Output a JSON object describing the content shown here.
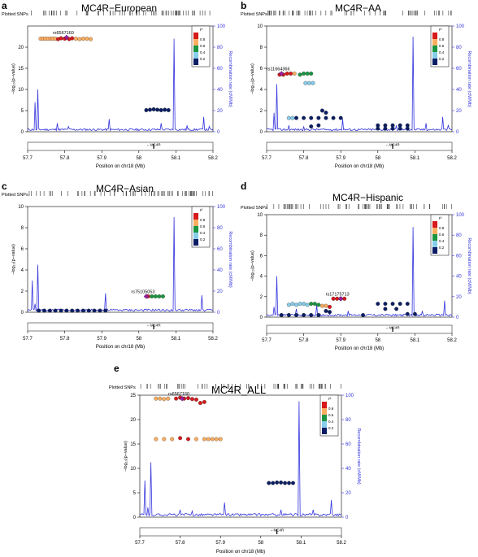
{
  "chart_data": [
    {
      "type": "scatter",
      "panel_label": "a",
      "title": "MC4R−European",
      "xlabel": "Position on chr18 (Mb)",
      "ylabel": "−log₁₀(p−value)",
      "y2label": "Recombination rate (cM/Mb)",
      "plotted_snps_label": "Plotted SNPs",
      "gene_label": "←MC4R",
      "lead_snp": "rs6567160",
      "xlim": [
        57.7,
        58.2
      ],
      "ylim": [
        0,
        25
      ],
      "y2lim": [
        0,
        100
      ],
      "x_ticks": [
        "57.7",
        "57.8",
        "57.9",
        "58",
        "58.1",
        "58.2"
      ],
      "y_ticks": [
        0,
        5,
        10,
        15,
        20
      ],
      "y2_ticks": [
        0,
        20,
        40,
        60,
        80,
        100
      ],
      "legend": {
        "title": "r²",
        "labels": [
          "0.8",
          "0.6",
          "0.4",
          "0.2"
        ]
      },
      "lead_point": [
        57.805,
        22.3
      ],
      "points": [
        [
          57.735,
          22
        ],
        [
          57.742,
          22
        ],
        [
          57.748,
          22
        ],
        [
          57.755,
          22
        ],
        [
          57.762,
          22
        ],
        [
          57.768,
          22
        ],
        [
          57.775,
          22
        ],
        [
          57.782,
          21.9
        ],
        [
          57.79,
          22.1
        ],
        [
          57.8,
          22
        ],
        [
          57.812,
          21.9
        ],
        [
          57.82,
          22.1
        ],
        [
          57.83,
          22
        ],
        [
          57.84,
          21.9
        ],
        [
          57.85,
          22
        ],
        [
          57.86,
          22
        ],
        [
          57.87,
          21.9
        ],
        [
          58.02,
          5.1
        ],
        [
          58.03,
          5.2
        ],
        [
          58.04,
          5.3
        ],
        [
          58.05,
          5.2
        ],
        [
          58.06,
          5.1
        ],
        [
          58.07,
          5.2
        ],
        [
          58.08,
          5.1
        ]
      ],
      "point_r2": [
        0.7,
        0.7,
        0.7,
        0.7,
        0.7,
        0.7,
        0.7,
        0.9,
        0.9,
        0.9,
        0.9,
        0.9,
        0.7,
        0.7,
        0.7,
        0.7,
        0.7,
        0.1,
        0.1,
        0.1,
        0.1,
        0.1,
        0.1,
        0.1
      ],
      "recomb_peaks": [
        [
          57.72,
          28
        ],
        [
          57.728,
          40
        ],
        [
          57.78,
          8
        ],
        [
          57.81,
          5
        ],
        [
          57.92,
          12
        ],
        [
          58.06,
          8
        ],
        [
          58.094,
          88
        ],
        [
          58.13,
          6
        ],
        [
          58.175,
          14
        ],
        [
          58.19,
          5
        ]
      ]
    },
    {
      "type": "scatter",
      "panel_label": "b",
      "title": "MC4R−AA",
      "xlabel": "Position on chr18 (Mb)",
      "ylabel": "−log₁₀(p−value)",
      "y2label": "Recombination rate (cM/Mb)",
      "plotted_snps_label": "Plotted SNPs",
      "gene_label": "←MC4R",
      "lead_snp": "rs11664366",
      "xlim": [
        57.7,
        58.2
      ],
      "ylim": [
        0,
        10
      ],
      "y2lim": [
        0,
        100
      ],
      "x_ticks": [
        "57.7",
        "57.8",
        "57.9",
        "58",
        "58.1",
        "58.2"
      ],
      "y_ticks": [
        0,
        2,
        4,
        6,
        8,
        10
      ],
      "y2_ticks": [
        0,
        20,
        40,
        60,
        80,
        100
      ],
      "legend": {
        "title": "r²",
        "labels": [
          "0.8",
          "0.6",
          "0.4",
          "0.2"
        ]
      },
      "lead_point": [
        57.74,
        5.5
      ],
      "points": [
        [
          57.735,
          5.4
        ],
        [
          57.745,
          5.4
        ],
        [
          57.755,
          5.5
        ],
        [
          57.765,
          5.5
        ],
        [
          57.775,
          5.5
        ],
        [
          57.79,
          5.4
        ],
        [
          57.8,
          5.5
        ],
        [
          57.81,
          5.5
        ],
        [
          57.82,
          5.5
        ],
        [
          57.805,
          4.6
        ],
        [
          57.815,
          4.6
        ],
        [
          57.825,
          4.6
        ],
        [
          57.76,
          1.3
        ],
        [
          57.77,
          1.3
        ],
        [
          57.78,
          1.3
        ],
        [
          57.8,
          1.3
        ],
        [
          57.82,
          1.3
        ],
        [
          57.84,
          1.3
        ],
        [
          57.86,
          1.3
        ],
        [
          57.88,
          1.3
        ],
        [
          57.9,
          1.3
        ],
        [
          57.85,
          2
        ],
        [
          57.86,
          1.8
        ],
        [
          57.82,
          0.5
        ],
        [
          57.84,
          0.6
        ],
        [
          58.0,
          0.6
        ],
        [
          58.02,
          0.6
        ],
        [
          58.04,
          0.6
        ],
        [
          58.06,
          0.6
        ],
        [
          58.08,
          0.6
        ],
        [
          58.0,
          0.3
        ],
        [
          58.02,
          0.3
        ],
        [
          58.04,
          0.3
        ],
        [
          58.06,
          0.3
        ],
        [
          58.08,
          0.3
        ]
      ],
      "point_r2": [
        0.9,
        0.9,
        0.9,
        0.9,
        0.7,
        0.5,
        0.5,
        0.5,
        0.5,
        0.3,
        0.3,
        0.3,
        0.3,
        0.3,
        0.1,
        0.1,
        0.1,
        0.1,
        0.1,
        0.1,
        0.1,
        0.1,
        0.1,
        0.1,
        0.1,
        0.1,
        0.1,
        0.1,
        0.1,
        0.1,
        0.1,
        0.1,
        0.1,
        0.1,
        0.1
      ],
      "recomb_peaks": [
        [
          57.72,
          18
        ],
        [
          57.728,
          45
        ],
        [
          57.76,
          6
        ],
        [
          57.8,
          5
        ],
        [
          57.905,
          12
        ],
        [
          58.05,
          6
        ],
        [
          58.094,
          90
        ],
        [
          58.13,
          8
        ],
        [
          58.175,
          14
        ],
        [
          58.19,
          6
        ]
      ]
    },
    {
      "type": "scatter",
      "panel_label": "c",
      "title": "MC4R−Asian",
      "xlabel": "Position on chr18 (Mb)",
      "ylabel": "−log₁₀(p−value)",
      "y2label": "Recombination rate (cM/Mb)",
      "plotted_snps_label": "Plotted SNPs",
      "gene_label": "←MC4R",
      "lead_snp": "rs75105053",
      "xlim": [
        57.7,
        58.2
      ],
      "ylim": [
        0,
        10
      ],
      "y2lim": [
        0,
        100
      ],
      "x_ticks": [
        "57.7",
        "57.8",
        "57.9",
        "58",
        "58.1",
        "58.2"
      ],
      "y_ticks": [
        0,
        2,
        4,
        6,
        8,
        10
      ],
      "y2_ticks": [
        0,
        20,
        40,
        60,
        80,
        100
      ],
      "legend": {
        "title": "r²",
        "labels": [
          "0.8",
          "0.6",
          "0.4",
          "0.2"
        ]
      },
      "lead_point": [
        58.02,
        1.5
      ],
      "points": [
        [
          57.73,
          0.15
        ],
        [
          57.745,
          0.15
        ],
        [
          57.76,
          0.15
        ],
        [
          57.775,
          0.15
        ],
        [
          57.79,
          0.15
        ],
        [
          57.805,
          0.15
        ],
        [
          57.82,
          0.15
        ],
        [
          57.835,
          0.15
        ],
        [
          57.85,
          0.15
        ],
        [
          57.865,
          0.15
        ],
        [
          57.88,
          0.15
        ],
        [
          57.895,
          0.15
        ],
        [
          57.91,
          0.15
        ],
        [
          58.025,
          1.5
        ],
        [
          58.035,
          1.5
        ],
        [
          58.045,
          1.5
        ],
        [
          58.055,
          1.5
        ],
        [
          58.065,
          1.5
        ]
      ],
      "point_r2": [
        0.1,
        0.1,
        0.1,
        0.1,
        0.1,
        0.1,
        0.1,
        0.1,
        0.1,
        0.1,
        0.1,
        0.1,
        0.1,
        0.9,
        0.5,
        0.5,
        0.5,
        0.5
      ],
      "recomb_peaks": [
        [
          57.712,
          30
        ],
        [
          57.72,
          8
        ],
        [
          57.728,
          45
        ],
        [
          57.91,
          18
        ],
        [
          58.094,
          90
        ],
        [
          58.17,
          16
        ]
      ]
    },
    {
      "type": "scatter",
      "panel_label": "d",
      "title": "MC4R−Hispanic",
      "xlabel": "Position on chr18 (Mb)",
      "ylabel": "−log₁₀(p−value)",
      "y2label": "Recombination rate (cM/Mb)",
      "plotted_snps_label": "Plotted SNPs",
      "gene_label": "←MC4R",
      "lead_snp": "rs17175713",
      "xlim": [
        57.7,
        58.2
      ],
      "ylim": [
        0,
        10
      ],
      "y2lim": [
        0,
        100
      ],
      "x_ticks": [
        "57.7",
        "57.8",
        "57.9",
        "58",
        "58.1",
        "58.2"
      ],
      "y_ticks": [
        0,
        2,
        4,
        6,
        8,
        10
      ],
      "y2_ticks": [
        0,
        20,
        40,
        60,
        80,
        100
      ],
      "legend": {
        "title": "r²",
        "labels": [
          "0.8",
          "0.6",
          "0.4",
          "0.2"
        ]
      },
      "lead_point": [
        57.9,
        1.8
      ],
      "points": [
        [
          57.76,
          1.2
        ],
        [
          57.77,
          1.3
        ],
        [
          57.78,
          1.2
        ],
        [
          57.79,
          1.3
        ],
        [
          57.8,
          1.3
        ],
        [
          57.81,
          1.2
        ],
        [
          57.82,
          1.3
        ],
        [
          57.83,
          1.3
        ],
        [
          57.84,
          1.2
        ],
        [
          57.85,
          1.1
        ],
        [
          57.86,
          1.1
        ],
        [
          57.87,
          1.0
        ],
        [
          57.88,
          1.8
        ],
        [
          57.89,
          1.8
        ],
        [
          57.9,
          1.8
        ],
        [
          57.91,
          1.8
        ],
        [
          57.74,
          0.2
        ],
        [
          57.76,
          0.2
        ],
        [
          57.78,
          0.2
        ],
        [
          57.8,
          0.2
        ],
        [
          57.82,
          0.2
        ],
        [
          57.84,
          0.2
        ],
        [
          57.86,
          0.6
        ],
        [
          57.87,
          0.5
        ],
        [
          57.96,
          0.2
        ],
        [
          58.0,
          1.3
        ],
        [
          58.02,
          1.3
        ],
        [
          58.04,
          1.3
        ],
        [
          58.06,
          1.3
        ],
        [
          58.08,
          1.3
        ],
        [
          58.02,
          0.8
        ],
        [
          58.05,
          0.8
        ],
        [
          58.08,
          0.3
        ],
        [
          58.1,
          0.3
        ]
      ],
      "point_r2": [
        0.3,
        0.3,
        0.3,
        0.3,
        0.3,
        0.3,
        0.5,
        0.5,
        0.5,
        0.7,
        0.7,
        0.9,
        0.9,
        0.9,
        0.9,
        0.9,
        0.1,
        0.1,
        0.1,
        0.1,
        0.1,
        0.1,
        0.1,
        0.1,
        0.1,
        0.1,
        0.1,
        0.1,
        0.1,
        0.1,
        0.1,
        0.1,
        0.1,
        0.1
      ],
      "recomb_peaks": [
        [
          57.72,
          10
        ],
        [
          57.728,
          40
        ],
        [
          57.78,
          8
        ],
        [
          57.835,
          12
        ],
        [
          57.92,
          6
        ],
        [
          58.094,
          88
        ],
        [
          58.12,
          6
        ],
        [
          58.18,
          16
        ]
      ]
    },
    {
      "type": "scatter",
      "panel_label": "e",
      "title": "MC4R_ALL",
      "xlabel": "Position on chr18 (Mb)",
      "ylabel": "−log₁₀(p−value)",
      "y2label": "Recombination rate (cM/Mb)",
      "plotted_snps_label": "Plotted SNPs",
      "gene_label": "←MC4R",
      "lead_snp": "rs6567160",
      "xlim": [
        57.7,
        58.2
      ],
      "ylim": [
        0,
        25
      ],
      "y2lim": [
        0,
        100
      ],
      "x_ticks": [
        "57.7",
        "57.8",
        "57.9",
        "58",
        "58.1",
        "58.2"
      ],
      "y_ticks": [
        0,
        5,
        10,
        15,
        20,
        25
      ],
      "y2_ticks": [
        0,
        20,
        40,
        60,
        80,
        100
      ],
      "legend": {
        "title": "r²",
        "labels": [
          "0.8",
          "0.6",
          "0.4",
          "0.2"
        ]
      },
      "lead_point": [
        57.805,
        24.3
      ],
      "points": [
        [
          57.74,
          24.3
        ],
        [
          57.75,
          24.3
        ],
        [
          57.76,
          24.2
        ],
        [
          57.77,
          24.3
        ],
        [
          57.79,
          24.3
        ],
        [
          57.8,
          24.5
        ],
        [
          57.81,
          24.3
        ],
        [
          57.82,
          24.4
        ],
        [
          57.83,
          24.2
        ],
        [
          57.84,
          24.1
        ],
        [
          57.85,
          23.4
        ],
        [
          57.86,
          23.6
        ],
        [
          57.74,
          16
        ],
        [
          57.76,
          16
        ],
        [
          57.78,
          16
        ],
        [
          57.8,
          16.2
        ],
        [
          57.82,
          16
        ],
        [
          57.84,
          16
        ],
        [
          57.86,
          16
        ],
        [
          57.87,
          16
        ],
        [
          57.88,
          16
        ],
        [
          57.89,
          16
        ],
        [
          57.9,
          16
        ],
        [
          58.02,
          7
        ],
        [
          58.03,
          7
        ],
        [
          58.04,
          7.1
        ],
        [
          58.05,
          7.1
        ],
        [
          58.06,
          7
        ],
        [
          58.07,
          7
        ],
        [
          58.08,
          7
        ]
      ],
      "point_r2": [
        0.7,
        0.7,
        0.7,
        0.7,
        0.9,
        0.9,
        0.9,
        0.9,
        0.9,
        0.9,
        0.9,
        0.9,
        0.7,
        0.7,
        0.7,
        0.9,
        0.9,
        0.7,
        0.7,
        0.7,
        0.7,
        0.7,
        0.7,
        0.1,
        0.1,
        0.1,
        0.1,
        0.1,
        0.1,
        0.1
      ],
      "recomb_peaks": [
        [
          57.712,
          30
        ],
        [
          57.72,
          8
        ],
        [
          57.728,
          45
        ],
        [
          57.8,
          6
        ],
        [
          57.83,
          5
        ],
        [
          57.91,
          12
        ],
        [
          58.05,
          6
        ],
        [
          58.094,
          95
        ],
        [
          58.13,
          6
        ],
        [
          58.175,
          14
        ]
      ]
    }
  ],
  "colors": {
    "r2_08": "#d7191c",
    "r2_06": "#fdae61",
    "r2_04": "#1a9641",
    "r2_02": "#87ceeb",
    "r2_00": "#0b1e64",
    "recomb_line": "#3333dd",
    "lead_snp": "#9b1fa1"
  }
}
